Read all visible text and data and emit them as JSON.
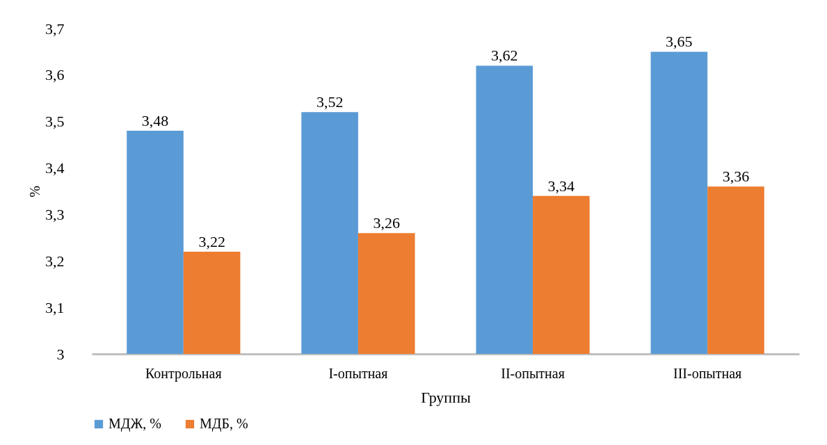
{
  "chart_data": {
    "type": "bar",
    "xlabel": "Группы",
    "ylabel": "%",
    "categories": [
      "Контрольная",
      "I-опытная",
      "II-опытная",
      "III-опытная"
    ],
    "series": [
      {
        "name": "МДЖ, %",
        "color": "#5b9bd5",
        "values": [
          3.48,
          3.52,
          3.62,
          3.65
        ],
        "value_labels": [
          "3,48",
          "3,52",
          "3,62",
          "3,65"
        ]
      },
      {
        "name": "МДБ, %",
        "color": "#ed7d31",
        "values": [
          3.22,
          3.26,
          3.34,
          3.36
        ],
        "value_labels": [
          "3,22",
          "3,26",
          "3,34",
          "3,36"
        ]
      }
    ],
    "ylim": [
      3,
      3.7
    ],
    "yticks": [
      {
        "value": 3,
        "label": "3"
      },
      {
        "value": 3.1,
        "label": "3,1"
      },
      {
        "value": 3.2,
        "label": "3,2"
      },
      {
        "value": 3.3,
        "label": "3,3"
      },
      {
        "value": 3.4,
        "label": "3,4"
      },
      {
        "value": 3.5,
        "label": "3,5"
      },
      {
        "value": 3.6,
        "label": "3,6"
      },
      {
        "value": 3.7,
        "label": "3,7"
      }
    ],
    "grid": false,
    "legend": "bottom"
  }
}
